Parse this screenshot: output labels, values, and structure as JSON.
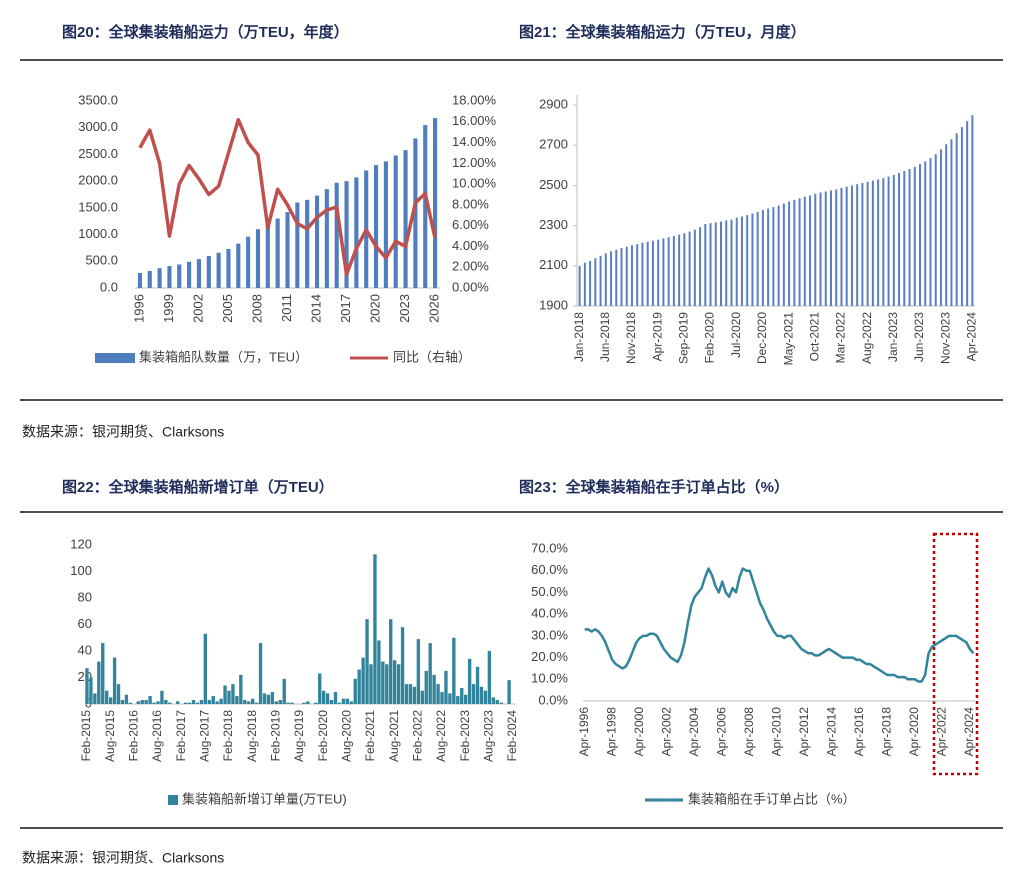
{
  "sources": [
    "数据来源：银河期货、Clarksons",
    "数据来源：银河期货、Clarksons"
  ],
  "chart_data": [
    {
      "type": "combo",
      "title": "图20：全球集装箱船运力（万TEU，年度）",
      "categories": [
        "1996",
        null,
        null,
        "1999",
        null,
        null,
        "2002",
        null,
        null,
        "2005",
        null,
        null,
        "2008",
        null,
        null,
        "2011",
        null,
        null,
        "2014",
        null,
        null,
        "2017",
        null,
        null,
        "2020",
        null,
        null,
        "2023",
        null,
        null,
        "2026"
      ],
      "series": [
        {
          "name": "集装箱船队数量（万，TEU）",
          "type": "bar",
          "color": "#4f7ebf",
          "values": [
            280,
            320,
            370,
            410,
            440,
            490,
            540,
            600,
            660,
            730,
            830,
            960,
            1100,
            1250,
            1300,
            1420,
            1600,
            1650,
            1730,
            1850,
            1970,
            2000,
            2070,
            2200,
            2300,
            2370,
            2480,
            2580,
            2800,
            3050,
            3180
          ]
        },
        {
          "name": "同比（右轴）",
          "type": "line",
          "axis": "y2",
          "color": "#c0504d",
          "values": [
            13.5,
            15.2,
            12.0,
            5.0,
            10.0,
            11.8,
            10.5,
            9.0,
            9.8,
            13.0,
            16.2,
            14.0,
            12.8,
            5.8,
            9.5,
            8.0,
            6.2,
            5.7,
            6.8,
            7.5,
            7.8,
            1.3,
            3.8,
            5.6,
            4.0,
            2.9,
            4.5,
            4.0,
            8.2,
            9.1,
            4.8
          ]
        }
      ],
      "ylim": [
        0,
        3500
      ],
      "yticks": [
        {
          "value": 0,
          "label": "0.0"
        },
        {
          "value": 500,
          "label": "500.0"
        },
        {
          "value": 1000,
          "label": "1000.0"
        },
        {
          "value": 1500,
          "label": "1500.0"
        },
        {
          "value": 2000,
          "label": "2000.0"
        },
        {
          "value": 2500,
          "label": "2500.0"
        },
        {
          "value": 3000,
          "label": "3000.0"
        },
        {
          "value": 3500,
          "label": "3500.0"
        }
      ],
      "y2lim": [
        0,
        18
      ],
      "y2ticks": [
        {
          "value": 0,
          "label": "0.00%"
        },
        {
          "value": 2,
          "label": "2.00%"
        },
        {
          "value": 4,
          "label": "4.00%"
        },
        {
          "value": 6,
          "label": "6.00%"
        },
        {
          "value": 8,
          "label": "8.00%"
        },
        {
          "value": 10,
          "label": "10.00%"
        },
        {
          "value": 12,
          "label": "12.00%"
        },
        {
          "value": 14,
          "label": "14.00%"
        },
        {
          "value": 16,
          "label": "16.00%"
        },
        {
          "value": 18,
          "label": "18.00%"
        }
      ]
    },
    {
      "type": "bar",
      "title": "图21：全球集装箱船运力（万TEU，月度）",
      "color": "#5a7fc0",
      "categories": [
        "Jan-2018",
        null,
        null,
        null,
        null,
        "Jun-2018",
        null,
        null,
        null,
        null,
        "Nov-2018",
        null,
        null,
        null,
        null,
        "Apr-2019",
        null,
        null,
        null,
        null,
        "Sep-2019",
        null,
        null,
        null,
        null,
        "Feb-2020",
        null,
        null,
        null,
        null,
        "Jul-2020",
        null,
        null,
        null,
        null,
        "Dec-2020",
        null,
        null,
        null,
        null,
        "May-2021",
        null,
        null,
        null,
        null,
        "Oct-2021",
        null,
        null,
        null,
        null,
        "Mar-2022",
        null,
        null,
        null,
        null,
        "Aug-2022",
        null,
        null,
        null,
        null,
        "Jan-2023",
        null,
        null,
        null,
        null,
        "Jun-2023",
        null,
        null,
        null,
        null,
        "Nov-2023",
        null,
        null,
        null,
        null,
        "Apr-2024"
      ],
      "values": [
        2100,
        2115,
        2125,
        2138,
        2150,
        2162,
        2172,
        2180,
        2188,
        2195,
        2202,
        2208,
        2215,
        2220,
        2225,
        2230,
        2236,
        2242,
        2248,
        2255,
        2262,
        2270,
        2280,
        2292,
        2308,
        2312,
        2316,
        2320,
        2325,
        2330,
        2340,
        2345,
        2352,
        2360,
        2368,
        2378,
        2385,
        2392,
        2400,
        2410,
        2420,
        2428,
        2436,
        2444,
        2450,
        2458,
        2465,
        2470,
        2475,
        2480,
        2488,
        2494,
        2500,
        2506,
        2512,
        2518,
        2524,
        2530,
        2536,
        2544,
        2552,
        2562,
        2572,
        2582,
        2592,
        2606,
        2620,
        2636,
        2655,
        2680,
        2705,
        2730,
        2760,
        2790,
        2820,
        2850
      ],
      "ylim": [
        1900,
        2950
      ],
      "yticks": [
        1900,
        2100,
        2300,
        2500,
        2700,
        2900
      ]
    },
    {
      "type": "bar",
      "title": "图22：全球集装箱船新增订单（万TEU）",
      "categories": [
        "Feb-2015",
        null,
        null,
        null,
        null,
        null,
        "Aug-2015",
        null,
        null,
        null,
        null,
        null,
        "Feb-2016",
        null,
        null,
        null,
        null,
        null,
        "Aug-2016",
        null,
        null,
        null,
        null,
        null,
        "Feb-2017",
        null,
        null,
        null,
        null,
        null,
        "Aug-2017",
        null,
        null,
        null,
        null,
        null,
        "Feb-2018",
        null,
        null,
        null,
        null,
        null,
        "Aug-2018",
        null,
        null,
        null,
        null,
        null,
        "Feb-2019",
        null,
        null,
        null,
        null,
        null,
        "Aug-2019",
        null,
        null,
        null,
        null,
        null,
        "Feb-2020",
        null,
        null,
        null,
        null,
        null,
        "Aug-2020",
        null,
        null,
        null,
        null,
        null,
        "Feb-2021",
        null,
        null,
        null,
        null,
        null,
        "Aug-2021",
        null,
        null,
        null,
        null,
        null,
        "Feb-2022",
        null,
        null,
        null,
        null,
        null,
        "Aug-2022",
        null,
        null,
        null,
        null,
        null,
        "Feb-2023",
        null,
        null,
        null,
        null,
        null,
        "Aug-2023",
        null,
        null,
        null,
        null,
        null,
        "Feb-2024"
      ],
      "series": [
        {
          "name": "集装箱船新增订单量(万TEU)",
          "color": "#31849b",
          "values": [
            27,
            20,
            8,
            32,
            46,
            10,
            5,
            35,
            15,
            3,
            7,
            1,
            0,
            2,
            3,
            3,
            6,
            1,
            2,
            10,
            3,
            1,
            0,
            2,
            0,
            1,
            1,
            3,
            1,
            3,
            53,
            3,
            6,
            2,
            4,
            14,
            10,
            15,
            6,
            22,
            3,
            2,
            4,
            1,
            46,
            8,
            7,
            9,
            2,
            3,
            19,
            1,
            1,
            0,
            0,
            1,
            2,
            0,
            1,
            23,
            10,
            8,
            3,
            9,
            1,
            4,
            4,
            2,
            19,
            26,
            35,
            64,
            30,
            113,
            48,
            32,
            30,
            64,
            33,
            30,
            58,
            15,
            15,
            13,
            49,
            10,
            25,
            46,
            22,
            15,
            9,
            25,
            8,
            50,
            6,
            12,
            7,
            34,
            15,
            28,
            13,
            10,
            40,
            5,
            3,
            1,
            0,
            18,
            0
          ]
        }
      ],
      "ylim": [
        0,
        120
      ],
      "yticks": [
        0,
        20,
        40,
        60,
        80,
        100,
        120
      ]
    },
    {
      "type": "line",
      "title": "图23：全球集装箱船在手订单占比（%）",
      "categories": [
        "Apr-1996",
        null,
        null,
        null,
        null,
        null,
        null,
        null,
        "Apr-1998",
        null,
        null,
        null,
        null,
        null,
        null,
        null,
        "Apr-2000",
        null,
        null,
        null,
        null,
        null,
        null,
        null,
        "Apr-2002",
        null,
        null,
        null,
        null,
        null,
        null,
        null,
        "Apr-2004",
        null,
        null,
        null,
        null,
        null,
        null,
        null,
        "Apr-2006",
        null,
        null,
        null,
        null,
        null,
        null,
        null,
        "Apr-2008",
        null,
        null,
        null,
        null,
        null,
        null,
        null,
        "Apr-2010",
        null,
        null,
        null,
        null,
        null,
        null,
        null,
        "Apr-2012",
        null,
        null,
        null,
        null,
        null,
        null,
        null,
        "Apr-2014",
        null,
        null,
        null,
        null,
        null,
        null,
        null,
        "Apr-2016",
        null,
        null,
        null,
        null,
        null,
        null,
        null,
        "Apr-2018",
        null,
        null,
        null,
        null,
        null,
        null,
        null,
        "Apr-2020",
        null,
        null,
        null,
        null,
        null,
        null,
        null,
        "Apr-2022",
        null,
        null,
        null,
        null,
        null,
        null,
        null,
        "Apr-2024",
        null
      ],
      "series": [
        {
          "name": "集装箱船在手订单占比（%）",
          "color": "#31849b",
          "values": [
            33,
            33,
            32,
            33,
            32,
            30,
            27,
            23,
            19,
            17,
            16,
            15,
            16,
            19,
            23,
            27,
            29,
            30,
            30,
            31,
            31,
            30,
            27,
            24,
            22,
            20,
            19,
            18,
            21,
            27,
            36,
            44,
            48,
            50,
            52,
            57,
            61,
            58,
            53,
            50,
            55,
            50,
            48,
            52,
            50,
            57,
            61,
            60,
            60,
            55,
            50,
            45,
            42,
            38,
            35,
            32,
            30,
            30,
            29,
            30,
            30,
            28,
            26,
            24,
            23,
            22,
            22,
            21,
            21,
            22,
            23,
            24,
            23,
            22,
            21,
            20,
            20,
            20,
            20,
            19,
            19,
            18,
            17,
            17,
            16,
            15,
            14,
            13,
            12,
            12,
            12,
            11,
            11,
            11,
            10,
            10,
            10,
            9,
            9,
            12,
            22,
            25,
            26,
            27,
            28,
            29,
            30,
            30,
            30,
            29,
            28,
            27,
            24,
            22
          ]
        }
      ],
      "ylim": [
        0,
        70
      ],
      "yticks": [
        {
          "value": 0,
          "label": "0.0%"
        },
        {
          "value": 10,
          "label": "10.0%"
        },
        {
          "value": 20,
          "label": "20.0%"
        },
        {
          "value": 30,
          "label": "30.0%"
        },
        {
          "value": 40,
          "label": "40.0%"
        },
        {
          "value": 50,
          "label": "50.0%"
        },
        {
          "value": 60,
          "label": "60.0%"
        },
        {
          "value": 70,
          "label": "70.0%"
        }
      ]
    }
  ]
}
